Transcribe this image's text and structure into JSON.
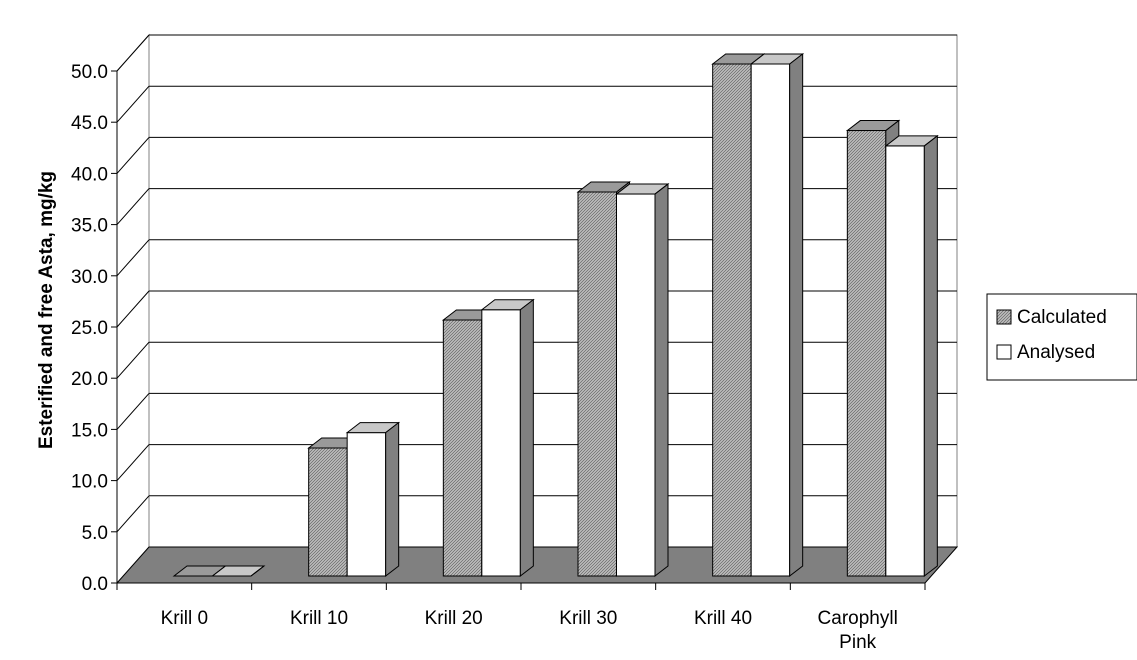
{
  "chart_data": {
    "type": "bar",
    "title": "",
    "xlabel": "",
    "ylabel": "Esterified and free Asta, mg/kg",
    "ylim": [
      0,
      50
    ],
    "y_ticks": [
      "0.0",
      "5.0",
      "10.0",
      "15.0",
      "20.0",
      "25.0",
      "30.0",
      "35.0",
      "40.0",
      "45.0",
      "50.0"
    ],
    "categories": [
      [
        "Krill 0"
      ],
      [
        "Krill 10"
      ],
      [
        "Krill 20"
      ],
      [
        "Krill 30"
      ],
      [
        "Krill 40"
      ],
      [
        "Carophyll",
        "Pink"
      ]
    ],
    "series": [
      {
        "name": "Calculated",
        "values": [
          0,
          12.5,
          25.0,
          37.5,
          50.0,
          43.5
        ]
      },
      {
        "name": "Analysed",
        "values": [
          0,
          14.0,
          26.0,
          37.3,
          50.0,
          42.0
        ]
      }
    ],
    "grid": true,
    "legend_position": "right",
    "style": "3d-clustered-bar",
    "colors": {
      "calculated": "#b8b8b8",
      "analysed": "#ffffff",
      "floor": "#808080",
      "side": "#808080",
      "top": "#c8c8c8",
      "line": "#000000"
    }
  }
}
